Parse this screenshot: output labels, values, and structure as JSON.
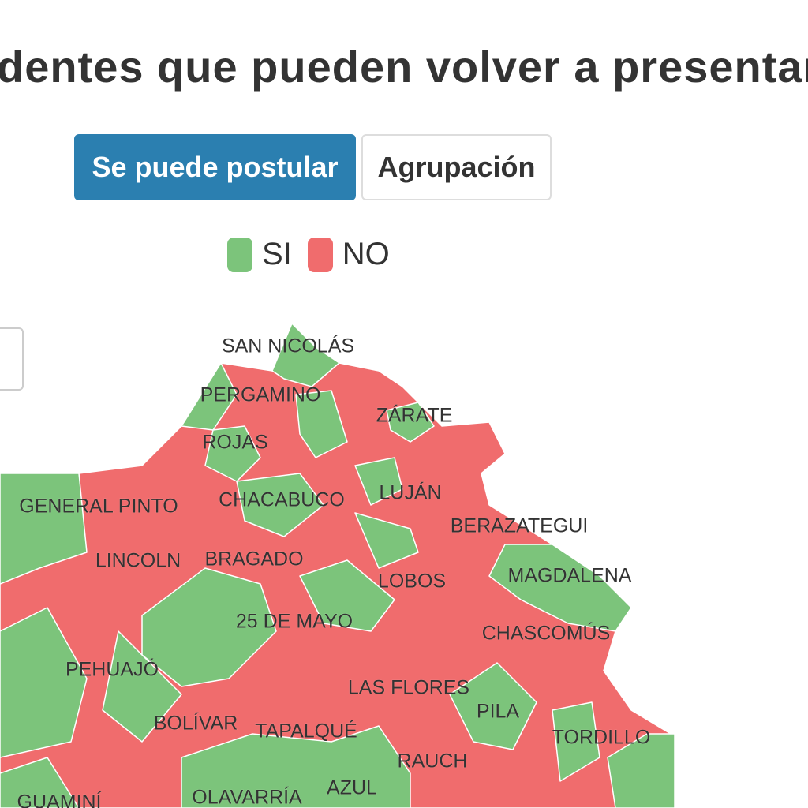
{
  "header": {
    "title": "dentes que pueden volver a presentars"
  },
  "tabs": [
    {
      "label": "Se puede postular",
      "active": true
    },
    {
      "label": "Agrupación",
      "active": false
    }
  ],
  "legend": [
    {
      "label": "SI",
      "color": "#7cc47b"
    },
    {
      "label": "NO",
      "color": "#f06c6d"
    }
  ],
  "map": {
    "labels": [
      "SAN NICOLÁS",
      "PERGAMINO",
      "ZÁRATE",
      "ROJAS",
      "GENERAL PINTO",
      "CHACABUCO",
      "LUJÁN",
      "BERAZATEGUI",
      "LINCOLN",
      "BRAGADO",
      "LOBOS",
      "MAGDALENA",
      "25 DE MAYO",
      "CHASCOMÚS",
      "PEHUAJÓ",
      "LAS FLORES",
      "PILA",
      "BOLÍVAR",
      "TAPALQUÉ",
      "TORDILLO",
      "RAUCH",
      "GUAMINÍ",
      "OLAVARRÍA",
      "AZUL"
    ]
  }
}
